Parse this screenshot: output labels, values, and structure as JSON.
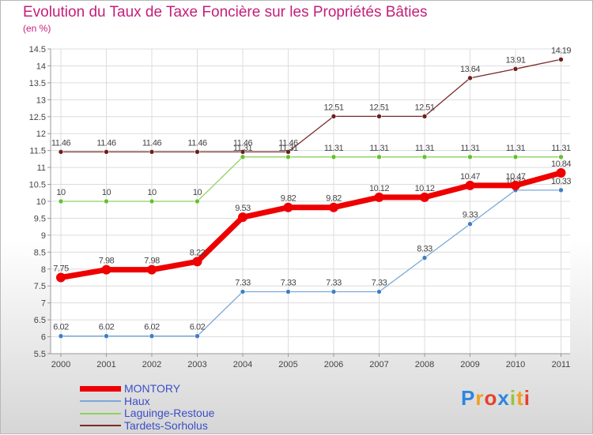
{
  "title": "Evolution du Taux de Taxe Foncière sur les Propriétés Bâties",
  "subtitle": "(en %)",
  "logo": "Proxiti",
  "chart_data": {
    "type": "line",
    "title": "Evolution du Taux de Taxe Foncière sur les Propriétés Bâties",
    "ylabel": "(en %)",
    "xlabel": "",
    "ylim": [
      5.5,
      14.5
    ],
    "y_ticks": [
      "5.5",
      "6",
      "6.5",
      "7",
      "7.5",
      "8",
      "8.5",
      "9",
      "9.5",
      "10",
      "10.5",
      "11",
      "11.5",
      "12",
      "12.5",
      "13",
      "13.5",
      "14",
      "14.5"
    ],
    "categories": [
      "2000",
      "2001",
      "2002",
      "2003",
      "2004",
      "2005",
      "2006",
      "2007",
      "2008",
      "2009",
      "2010",
      "2011"
    ],
    "series": [
      {
        "name": "Tardets-Sorholus",
        "color": "#7b2a2a",
        "point_color": "#6e1e1e",
        "width": 1.3,
        "marker": 3,
        "values": [
          11.46,
          11.46,
          11.46,
          11.46,
          11.46,
          11.46,
          12.51,
          12.51,
          12.51,
          13.64,
          13.91,
          14.19
        ],
        "labels": [
          "11.46",
          "11.46",
          "11.46",
          "11.46",
          "11.46",
          "11.46",
          "12.51",
          "12.51",
          "12.51",
          "13.64",
          "13.91",
          "14.19"
        ]
      },
      {
        "name": "Laguinge-Restoue",
        "color": "#8ed25a",
        "point_color": "#66c02e",
        "width": 1.3,
        "marker": 3,
        "values": [
          10,
          10,
          10,
          10,
          11.31,
          11.31,
          11.31,
          11.31,
          11.31,
          11.31,
          11.31,
          11.31
        ],
        "labels": [
          "10",
          "10",
          "10",
          "10",
          "11.31",
          "11.31",
          "11.31",
          "11.31",
          "11.31",
          "11.31",
          "11.31",
          "11.31"
        ]
      },
      {
        "name": "Haux",
        "color": "#7aa8d8",
        "point_color": "#3d7fc4",
        "width": 1.3,
        "marker": 3,
        "values": [
          6.02,
          6.02,
          6.02,
          6.02,
          7.33,
          7.33,
          7.33,
          7.33,
          8.33,
          9.33,
          10.33,
          10.33
        ],
        "labels": [
          "6.02",
          "6.02",
          "6.02",
          "6.02",
          "7.33",
          "7.33",
          "7.33",
          "7.33",
          "8.33",
          "9.33",
          "10.33",
          "10.33"
        ]
      },
      {
        "name": "MONTORY",
        "color": "#ee0000",
        "point_color": "#ee0000",
        "width": 7,
        "marker": 6,
        "values": [
          7.75,
          7.98,
          7.98,
          8.22,
          9.53,
          9.82,
          9.82,
          10.12,
          10.12,
          10.47,
          10.47,
          10.84
        ],
        "labels": [
          "7.75",
          "7.98",
          "7.98",
          "8.22",
          "9.53",
          "9.82",
          "9.82",
          "10.12",
          "10.12",
          "10.47",
          "10.47",
          "10.84"
        ]
      }
    ],
    "legend": [
      "MONTORY",
      "Haux",
      "Laguinge-Restoue",
      "Tardets-Sorholus"
    ],
    "grid": true,
    "legend_position": "bottom-left"
  }
}
